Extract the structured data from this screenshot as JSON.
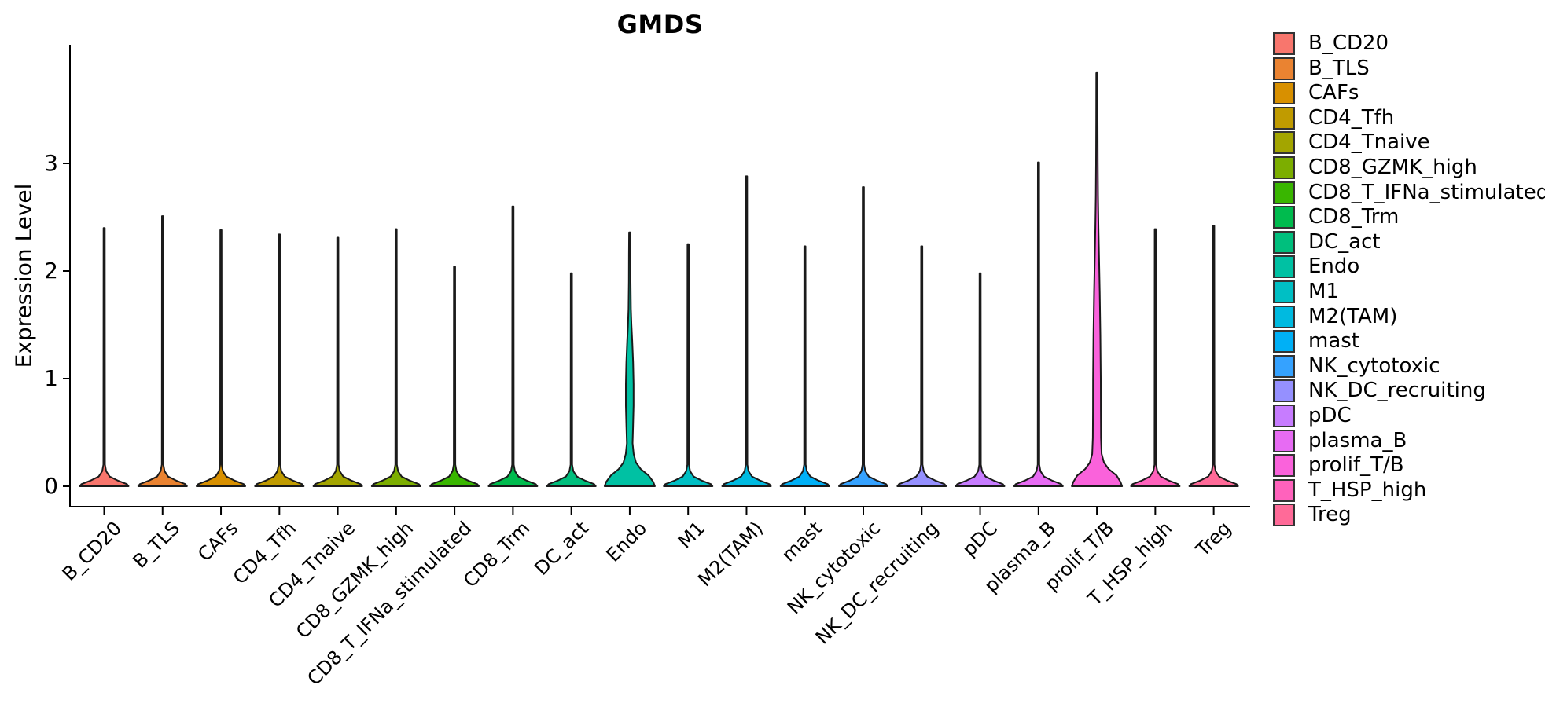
{
  "figure": {
    "title": "GMDS",
    "y_axis_label": "Expression Level"
  },
  "chart_data": {
    "type": "violin",
    "title": "GMDS",
    "xlabel": "",
    "ylabel": "Expression Level",
    "yticks": [
      0,
      1,
      2,
      3
    ],
    "ylim": [
      -0.2,
      4.1
    ],
    "grid": false,
    "legend_position": "right",
    "note": "Seurat-style single-gene violin plot; most populations show only a zero-expression base with a thin max spike; Endo and prolif_T/B show visible violin bodies.",
    "spike_profile": [
      [
        0,
        31
      ],
      [
        0.02,
        29
      ],
      [
        0.05,
        18
      ],
      [
        0.09,
        7
      ],
      [
        0.14,
        2.5
      ],
      [
        0.2,
        1.0
      ],
      [
        "MAX",
        0.8
      ]
    ],
    "cells": [
      {
        "label": "B_CD20",
        "color": "#F8766D",
        "max": 2.4,
        "body": "spike"
      },
      {
        "label": "B_TLS",
        "color": "#EA8331",
        "max": 2.51,
        "body": "spike"
      },
      {
        "label": "CAFs",
        "color": "#D89000",
        "max": 2.38,
        "body": "spike"
      },
      {
        "label": "CD4_Tfh",
        "color": "#C09B00",
        "max": 2.34,
        "body": "spike"
      },
      {
        "label": "CD4_Tnaive",
        "color": "#A3A500",
        "max": 2.31,
        "body": "spike"
      },
      {
        "label": "CD8_GZMK_high",
        "color": "#7CAE00",
        "max": 2.39,
        "body": "spike"
      },
      {
        "label": "CD8_T_IFNa_stimulated",
        "color": "#39B600",
        "max": 2.04,
        "body": "spike"
      },
      {
        "label": "CD8_Trm",
        "color": "#00BB4E",
        "max": 2.6,
        "body": "spike"
      },
      {
        "label": "DC_act",
        "color": "#00BF7D",
        "max": 1.98,
        "body": "spike"
      },
      {
        "label": "Endo",
        "color": "#00C1A3",
        "max": 2.36,
        "body": "full",
        "profile": [
          [
            0,
            32
          ],
          [
            0.04,
            30
          ],
          [
            0.1,
            24
          ],
          [
            0.16,
            14
          ],
          [
            0.22,
            8
          ],
          [
            0.3,
            5
          ],
          [
            0.4,
            3.6
          ],
          [
            0.55,
            4.2
          ],
          [
            0.75,
            4.9
          ],
          [
            0.95,
            4.9
          ],
          [
            1.15,
            4.3
          ],
          [
            1.35,
            3.2
          ],
          [
            1.5,
            2.2
          ],
          [
            1.65,
            1.5
          ],
          [
            1.9,
            1.1
          ],
          [
            2.15,
            1.0
          ],
          [
            2.36,
            0.8
          ]
        ]
      },
      {
        "label": "M1",
        "color": "#00BFC4",
        "max": 2.25,
        "body": "spike"
      },
      {
        "label": "M2(TAM)",
        "color": "#00BAE0",
        "max": 2.88,
        "body": "spike"
      },
      {
        "label": "mast",
        "color": "#00B0F6",
        "max": 2.23,
        "body": "spike"
      },
      {
        "label": "NK_cytotoxic",
        "color": "#35A2FF",
        "max": 2.78,
        "body": "spike"
      },
      {
        "label": "NK_DC_recruiting",
        "color": "#9590FF",
        "max": 2.23,
        "body": "spike"
      },
      {
        "label": "pDC",
        "color": "#C77CFF",
        "max": 1.98,
        "body": "spike"
      },
      {
        "label": "plasma_B",
        "color": "#E76BF3",
        "max": 3.01,
        "body": "spike"
      },
      {
        "label": "prolif_T/B",
        "color": "#FA62DB",
        "max": 3.84,
        "body": "full",
        "profile": [
          [
            0,
            32
          ],
          [
            0.04,
            30
          ],
          [
            0.1,
            25
          ],
          [
            0.16,
            15
          ],
          [
            0.22,
            9
          ],
          [
            0.3,
            6
          ],
          [
            0.45,
            5.2
          ],
          [
            0.7,
            5.0
          ],
          [
            1.0,
            4.9
          ],
          [
            1.4,
            4.4
          ],
          [
            1.8,
            3.6
          ],
          [
            2.1,
            2.8
          ],
          [
            2.4,
            2.0
          ],
          [
            2.7,
            1.4
          ],
          [
            3.0,
            1.1
          ],
          [
            3.4,
            0.9
          ],
          [
            3.84,
            0.8
          ]
        ]
      },
      {
        "label": "T_HSP_high",
        "color": "#FF62BC",
        "max": 2.39,
        "body": "spike"
      },
      {
        "label": "Treg",
        "color": "#FF6A98",
        "max": 2.42,
        "body": "spike"
      }
    ]
  }
}
